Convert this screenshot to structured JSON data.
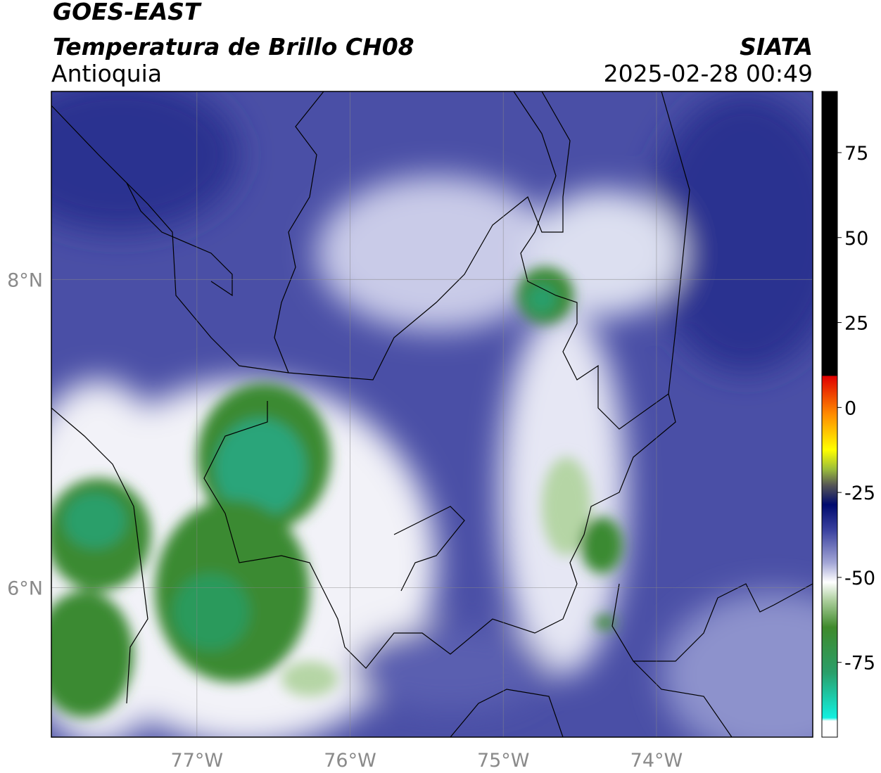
{
  "header": {
    "source": "GOES-EAST",
    "title": "Temperatura de Brillo CH08",
    "region": "Antioquia",
    "agency": "SIATA",
    "timestamp": "2025-02-28 00:49"
  },
  "map": {
    "lon_range": [
      -77.95,
      -72.98
    ],
    "lat_range": [
      5.03,
      9.22
    ],
    "lon_ticks": [
      {
        "value": -77,
        "label": "77°W"
      },
      {
        "value": -76,
        "label": "76°W"
      },
      {
        "value": -75,
        "label": "75°W"
      },
      {
        "value": -74,
        "label": "74°W"
      }
    ],
    "lat_ticks": [
      {
        "value": 8,
        "label": "8°N"
      },
      {
        "value": 6,
        "label": "6°N"
      }
    ],
    "grid": true
  },
  "colorbar": {
    "range": [
      -97,
      93
    ],
    "ticks": [
      75,
      50,
      25,
      0,
      -25,
      -50,
      -75
    ]
  }
}
